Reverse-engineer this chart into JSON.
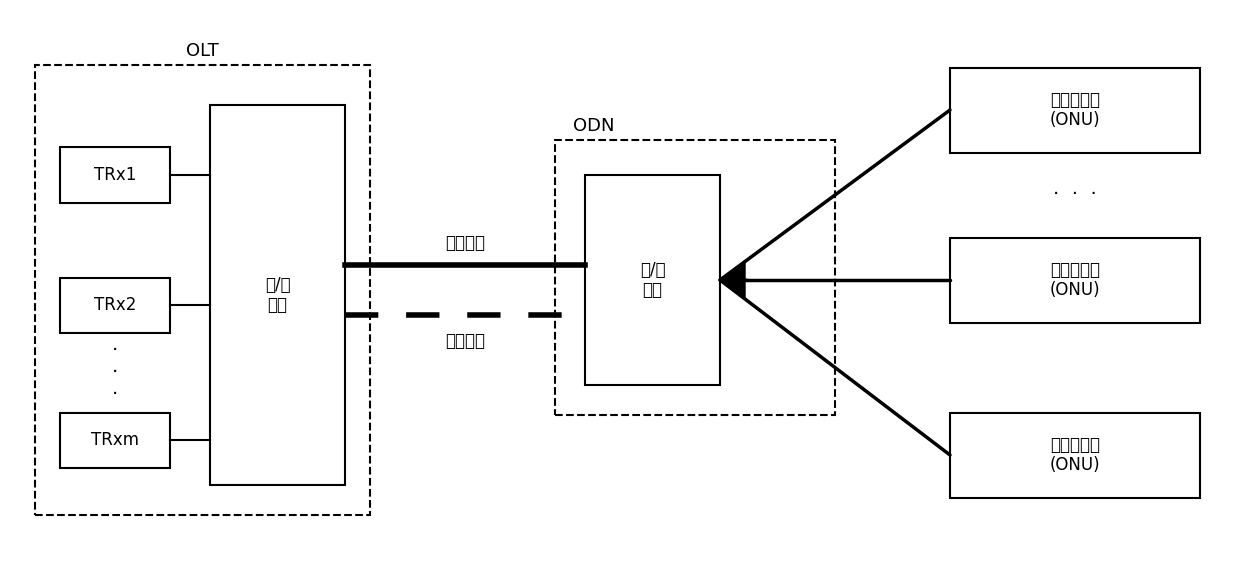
{
  "bg_color": "#ffffff",
  "line_color": "#000000",
  "box_color": "#ffffff",
  "text_color": "#000000",
  "olt_label": "OLT",
  "odn_label": "ODN",
  "trx_labels": [
    "TRx1",
    "TRx2",
    "TRxm"
  ],
  "mux1_label": "合/分\n波器",
  "mux2_label": "合/分\n波器",
  "fiber_main_label": "主用光纤",
  "fiber_backup_label": "备用光纤",
  "onu_label": "光网络单元\n(ONU)",
  "dots": "⋯",
  "vertical_dots": "⋯",
  "figsize": [
    12.4,
    5.7
  ],
  "dpi": 100
}
